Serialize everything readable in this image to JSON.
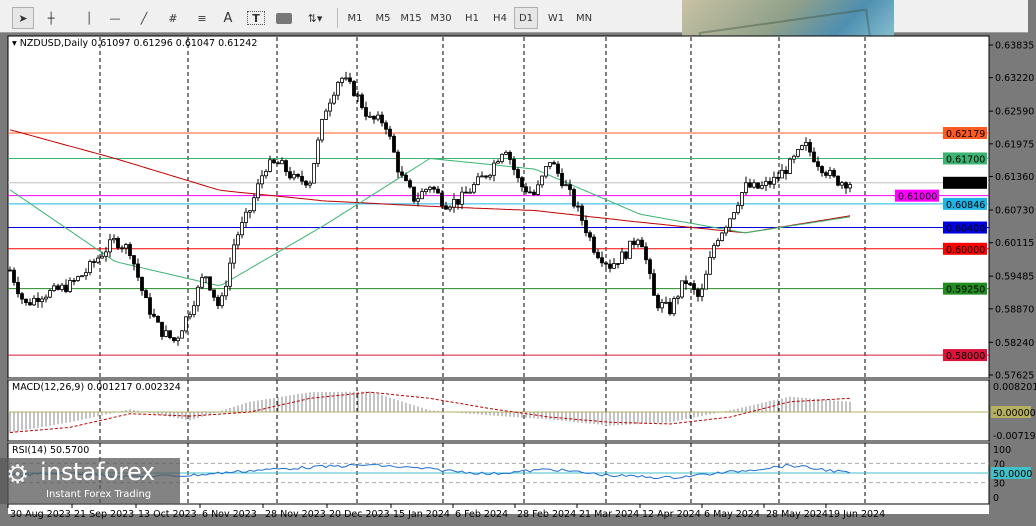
{
  "toolbar": {
    "tools": [
      "cursor",
      "crosshair",
      "vertical-line",
      "horizontal-line",
      "trendline",
      "fibonacci",
      "fibo-levels",
      "text",
      "text-label",
      "rectangle",
      "arrows"
    ],
    "text_tool": "A",
    "timeframes": [
      "M1",
      "M5",
      "M15",
      "M30",
      "H1",
      "H4",
      "D1",
      "W1",
      "MN"
    ],
    "active_timeframe": "D1"
  },
  "header": {
    "symbol": "NZDUSD,Daily",
    "open": "0.61097",
    "high": "0.61296",
    "low": "0.61047",
    "close": "0.61242"
  },
  "chart_data": [
    {
      "type": "candlestick",
      "symbol": "NZDUSD",
      "timeframe": "Daily",
      "ylim": [
        0.57625,
        0.63835
      ],
      "y_ticks": [
        "0.63835",
        "0.63220",
        "0.62590",
        "0.61975",
        "0.61360",
        "0.60730",
        "0.60115",
        "0.59485",
        "0.58870",
        "0.58240",
        "0.57625"
      ],
      "x_ticks": [
        "30 Aug 2023",
        "21 Sep 2023",
        "13 Oct 2023",
        "6 Nov 2023",
        "28 Nov 2023",
        "20 Dec 2023",
        "15 Jan 2024",
        "6 Feb 2024",
        "28 Feb 2024",
        "21 Mar 2024",
        "12 Apr 2024",
        "6 May 2024",
        "28 May 2024",
        "19 Jun 2024"
      ],
      "closes_sampled": [
        0.596,
        0.5894,
        0.5913,
        0.592,
        0.5932,
        0.5955,
        0.5988,
        0.6016,
        0.5998,
        0.5903,
        0.5847,
        0.5826,
        0.5885,
        0.5955,
        0.5885,
        0.6017,
        0.6073,
        0.6155,
        0.616,
        0.6129,
        0.6129,
        0.6261,
        0.6325,
        0.6295,
        0.6243,
        0.624,
        0.6139,
        0.6092,
        0.612,
        0.6085,
        0.6092,
        0.612,
        0.6148,
        0.6195,
        0.612,
        0.6101,
        0.6167,
        0.612,
        0.6064,
        0.5998,
        0.5969,
        0.599,
        0.603,
        0.59,
        0.5885,
        0.5941,
        0.5904,
        0.6014,
        0.606,
        0.6117,
        0.6114,
        0.613,
        0.6158,
        0.6195,
        0.6158,
        0.6129,
        0.6124
      ],
      "moving_averages": [
        {
          "color": "#c00000",
          "values": [
            0.6224,
            0.617,
            0.611,
            0.609,
            0.608,
            0.6072,
            0.605,
            0.603,
            0.6062
          ]
        },
        {
          "color": "#3cb371",
          "values": [
            0.6111,
            0.5976,
            0.593,
            0.6045,
            0.617,
            0.615,
            0.6065,
            0.603,
            0.606
          ]
        }
      ],
      "levels": [
        {
          "value": "0.62179",
          "color": "#ff5a1f"
        },
        {
          "value": "0.61700",
          "color": "#3cb371"
        },
        {
          "value": "0.61242",
          "color": "#000000",
          "line": "#c0c0c0"
        },
        {
          "value": "0.61000",
          "color": "#ff00ff"
        },
        {
          "value": "0.60846",
          "color": "#1eb4e6"
        },
        {
          "value": "0.60400",
          "color": "#0000e0"
        },
        {
          "value": "0.60000",
          "color": "#ff0000"
        },
        {
          "value": "0.59250",
          "color": "#228b22"
        },
        {
          "value": "0.58000",
          "color": "#dc143c"
        }
      ]
    },
    {
      "type": "bar",
      "name": "MACD(12,26,9)",
      "label": "MACD(12,26,9) 0.001217 0.002324",
      "y_ticks": [
        "0.008201",
        "-0.00000",
        "-0.007191"
      ],
      "histogram": [
        -0.006,
        -0.003,
        0.0008,
        -0.0025,
        0.003,
        0.0058,
        0.006,
        0.0005,
        -0.001,
        -0.0022,
        -0.004,
        -0.003,
        0.0005,
        0.0045,
        0.003
      ],
      "signal": [
        -0.006,
        -0.0045,
        -0.0005,
        -0.0012,
        0.0,
        0.004,
        0.0058,
        0.004,
        0.001,
        -0.0015,
        -0.003,
        -0.0035,
        -0.0015,
        0.003,
        0.004
      ],
      "zero_color": "#b5b060"
    },
    {
      "type": "line",
      "name": "RSI(14)",
      "label": "RSI(14) 50.5700",
      "y_ticks": [
        "100",
        "70",
        "50.0000",
        "30",
        "0"
      ],
      "ylim": [
        0,
        100
      ],
      "values": [
        45,
        50,
        42,
        45,
        55,
        62,
        67,
        58,
        48,
        58,
        45,
        40,
        52,
        66,
        50
      ],
      "level_color": "#40c0c8"
    }
  ],
  "watermark": {
    "brand": "instaforex",
    "tagline": "Instant Forex Trading"
  }
}
